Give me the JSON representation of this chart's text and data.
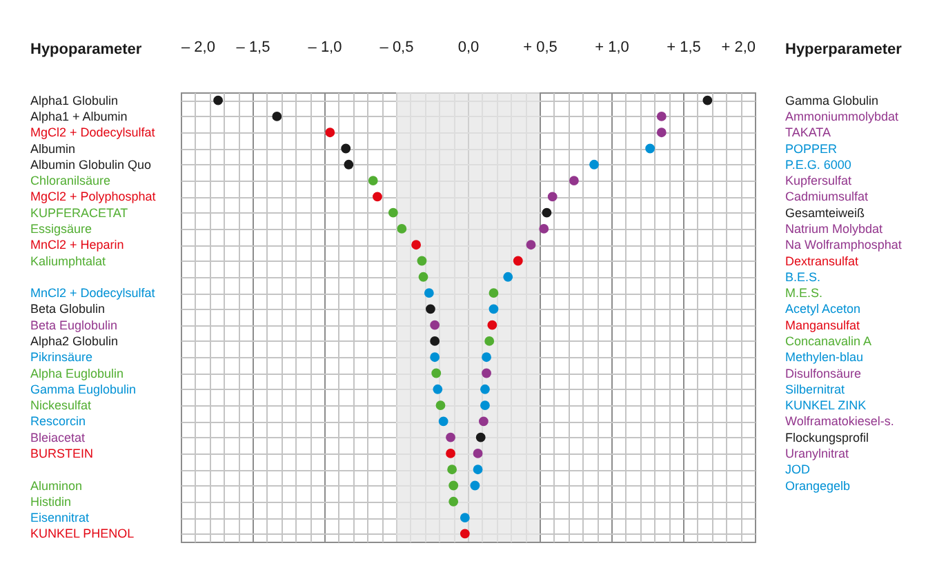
{
  "chart_data": {
    "type": "scatter",
    "orientation": "horizontal",
    "marker": "circle",
    "grid": true,
    "categories": [
      "Alpha1 Globulin",
      "Alpha1 + Albumin",
      "MgCl2 + Dodecylsulfat",
      "Albumin",
      "Albumin Globulin Quo",
      "Chloranilsäure",
      "MgCl2 + Polyphosphat",
      "KUPFERACETAT",
      "Essigsäure",
      "MnCl2 + Heparin",
      "Kaliumphtalat",
      null,
      "MnCl2 + Dodecylsulfat",
      "Beta Globulin",
      "Beta Euglobulin",
      "Alpha2 Globulin",
      "Pikrinsäure",
      "Alpha Euglobulin",
      "Gamma Euglobulin",
      "Nickesulfat",
      "Rescorcin",
      "Bleiacetat",
      "BURSTEIN",
      null,
      "Aluminon",
      "Histidin",
      "Eisennitrat",
      "KUNKEL PHENOL"
    ],
    "y2_categories": [
      "Gamma Globulin",
      "Ammoniummolybdat",
      "TAKATA",
      "POPPER",
      "P.E.G. 6000",
      "Kupfersulfat",
      "Cadmiumsulfat",
      "Gesamteiweiß",
      "Natrium Molybdat",
      "Na Wolframphosphat",
      "Dextransulfat",
      "B.E.S.",
      "M.E.S.",
      "Acetyl Aceton",
      "Mangansulfat",
      "Concanavalin A",
      "Methylen-blau",
      "Disulfonsäure",
      "Silbernitrat",
      "KUNKEL ZINK",
      "Wolframatokiesel-s.",
      "Flockungsprofil",
      "Uranylnitrat",
      "JOD",
      "Orangegelb",
      null,
      null,
      null
    ],
    "series": [
      {
        "values": [
          -1.74,
          -1.33,
          -0.96,
          -0.85,
          -0.83,
          -0.66,
          -0.63,
          -0.52,
          -0.46,
          -0.36,
          -0.32,
          -0.31,
          -0.27,
          -0.26,
          -0.23,
          -0.23,
          -0.23,
          -0.22,
          -0.21,
          -0.19,
          -0.17,
          -0.12,
          -0.12,
          -0.11,
          -0.1,
          -0.1,
          -0.02,
          -0.02
        ],
        "colors": [
          "#1a1a1a",
          "#1a1a1a",
          "#e30613",
          "#1a1a1a",
          "#1a1a1a",
          "#52ae32",
          "#e30613",
          "#52ae32",
          "#52ae32",
          "#e30613",
          "#52ae32",
          "#52ae32",
          "#0091d5",
          "#1a1a1a",
          "#93368d",
          "#1a1a1a",
          "#0091d5",
          "#52ae32",
          "#0091d5",
          "#52ae32",
          "#0091d5",
          "#93368d",
          "#e30613",
          "#52ae32",
          "#52ae32",
          "#52ae32",
          "#0091d5",
          "#e30613"
        ]
      },
      {
        "values": [
          1.67,
          1.35,
          1.35,
          1.27,
          0.88,
          0.74,
          0.59,
          0.55,
          0.53,
          0.44,
          0.35,
          0.28,
          0.18,
          0.18,
          0.17,
          0.15,
          0.13,
          0.13,
          0.12,
          0.12,
          0.11,
          0.09,
          0.07,
          0.07,
          0.05,
          null,
          null,
          null
        ],
        "colors": [
          "#1a1a1a",
          "#93368d",
          "#93368d",
          "#0091d5",
          "#0091d5",
          "#93368d",
          "#93368d",
          "#1a1a1a",
          "#93368d",
          "#93368d",
          "#e30613",
          "#0091d5",
          "#52ae32",
          "#0091d5",
          "#e30613",
          "#52ae32",
          "#0091d5",
          "#93368d",
          "#0091d5",
          "#0091d5",
          "#93368d",
          "#1a1a1a",
          "#93368d",
          "#0091d5",
          "#0091d5",
          null,
          null,
          null
        ]
      }
    ],
    "xlim": [
      -2.0,
      2.0
    ],
    "xticks": [
      {
        "value": -2.0,
        "label": "– 2,0"
      },
      {
        "value": -1.9,
        "label": null
      },
      {
        "value": -1.8,
        "label": null
      },
      {
        "value": -1.7,
        "label": null
      },
      {
        "value": -1.6,
        "label": null
      },
      {
        "value": -1.5,
        "label": "– 1,5"
      },
      {
        "value": -1.4,
        "label": null
      },
      {
        "value": -1.3,
        "label": null
      },
      {
        "value": -1.2,
        "label": null
      },
      {
        "value": -1.1,
        "label": null
      },
      {
        "value": -1.0,
        "label": "– 1,0"
      },
      {
        "value": -0.9,
        "label": null
      },
      {
        "value": -0.8,
        "label": null
      },
      {
        "value": -0.7,
        "label": null
      },
      {
        "value": -0.6,
        "label": null
      },
      {
        "value": -0.5,
        "label": "– 0,5"
      },
      {
        "value": -0.4,
        "label": null
      },
      {
        "value": -0.3,
        "label": null
      },
      {
        "value": -0.2,
        "label": null
      },
      {
        "value": -0.1,
        "label": null
      },
      {
        "value": 0.0,
        "label": "0,0"
      },
      {
        "value": 0.1,
        "label": null
      },
      {
        "value": 0.2,
        "label": null
      },
      {
        "value": 0.3,
        "label": null
      },
      {
        "value": 0.4,
        "label": null
      },
      {
        "value": 0.5,
        "label": "+ 0,5"
      },
      {
        "value": 0.6,
        "label": null
      },
      {
        "value": 0.7,
        "label": null
      },
      {
        "value": 0.8,
        "label": null
      },
      {
        "value": 0.9,
        "label": null
      },
      {
        "value": 1.0,
        "label": "+ 1,0"
      },
      {
        "value": 1.1,
        "label": null
      },
      {
        "value": 1.2,
        "label": null
      },
      {
        "value": 1.3,
        "label": null
      },
      {
        "value": 1.4,
        "label": null
      },
      {
        "value": 1.5,
        "label": "+ 1,5"
      },
      {
        "value": 1.6,
        "label": null
      },
      {
        "value": 1.7,
        "label": null
      },
      {
        "value": 1.8,
        "label": null
      },
      {
        "value": 1.9,
        "label": null
      },
      {
        "value": 2.0,
        "label": "+ 2,0"
      }
    ],
    "annotations": [
      "Hypoparameter",
      "Hyperparameter"
    ],
    "bands": [
      {
        "axis": "x",
        "from": -0.5,
        "to": 0.5,
        "color": "#e6e6e6"
      }
    ]
  }
}
